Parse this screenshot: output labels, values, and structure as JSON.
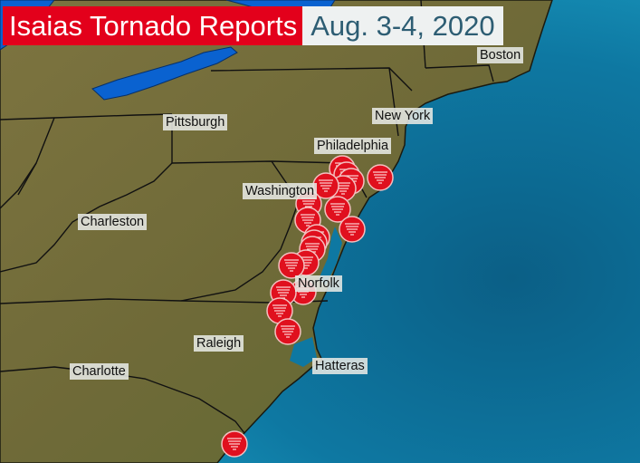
{
  "title": {
    "main": "Isaias Tornado Reports",
    "dates": "Aug. 3-4, 2020"
  },
  "colors": {
    "title_red": "#e3001b",
    "date_text": "#2d5d73",
    "marker": "#e0101e",
    "land": "#7a6e3a",
    "ocean": "#1a7fa8",
    "lakes": "#0a62d0"
  },
  "marker_icon": "tornado-report-icon",
  "cities": [
    {
      "name": "Boston"
    },
    {
      "name": "New York"
    },
    {
      "name": "Pittsburgh"
    },
    {
      "name": "Philadelphia"
    },
    {
      "name": "Washington"
    },
    {
      "name": "Charleston"
    },
    {
      "name": "Norfolk"
    },
    {
      "name": "Raleigh"
    },
    {
      "name": "Hatteras"
    },
    {
      "name": "Charlotte"
    }
  ]
}
